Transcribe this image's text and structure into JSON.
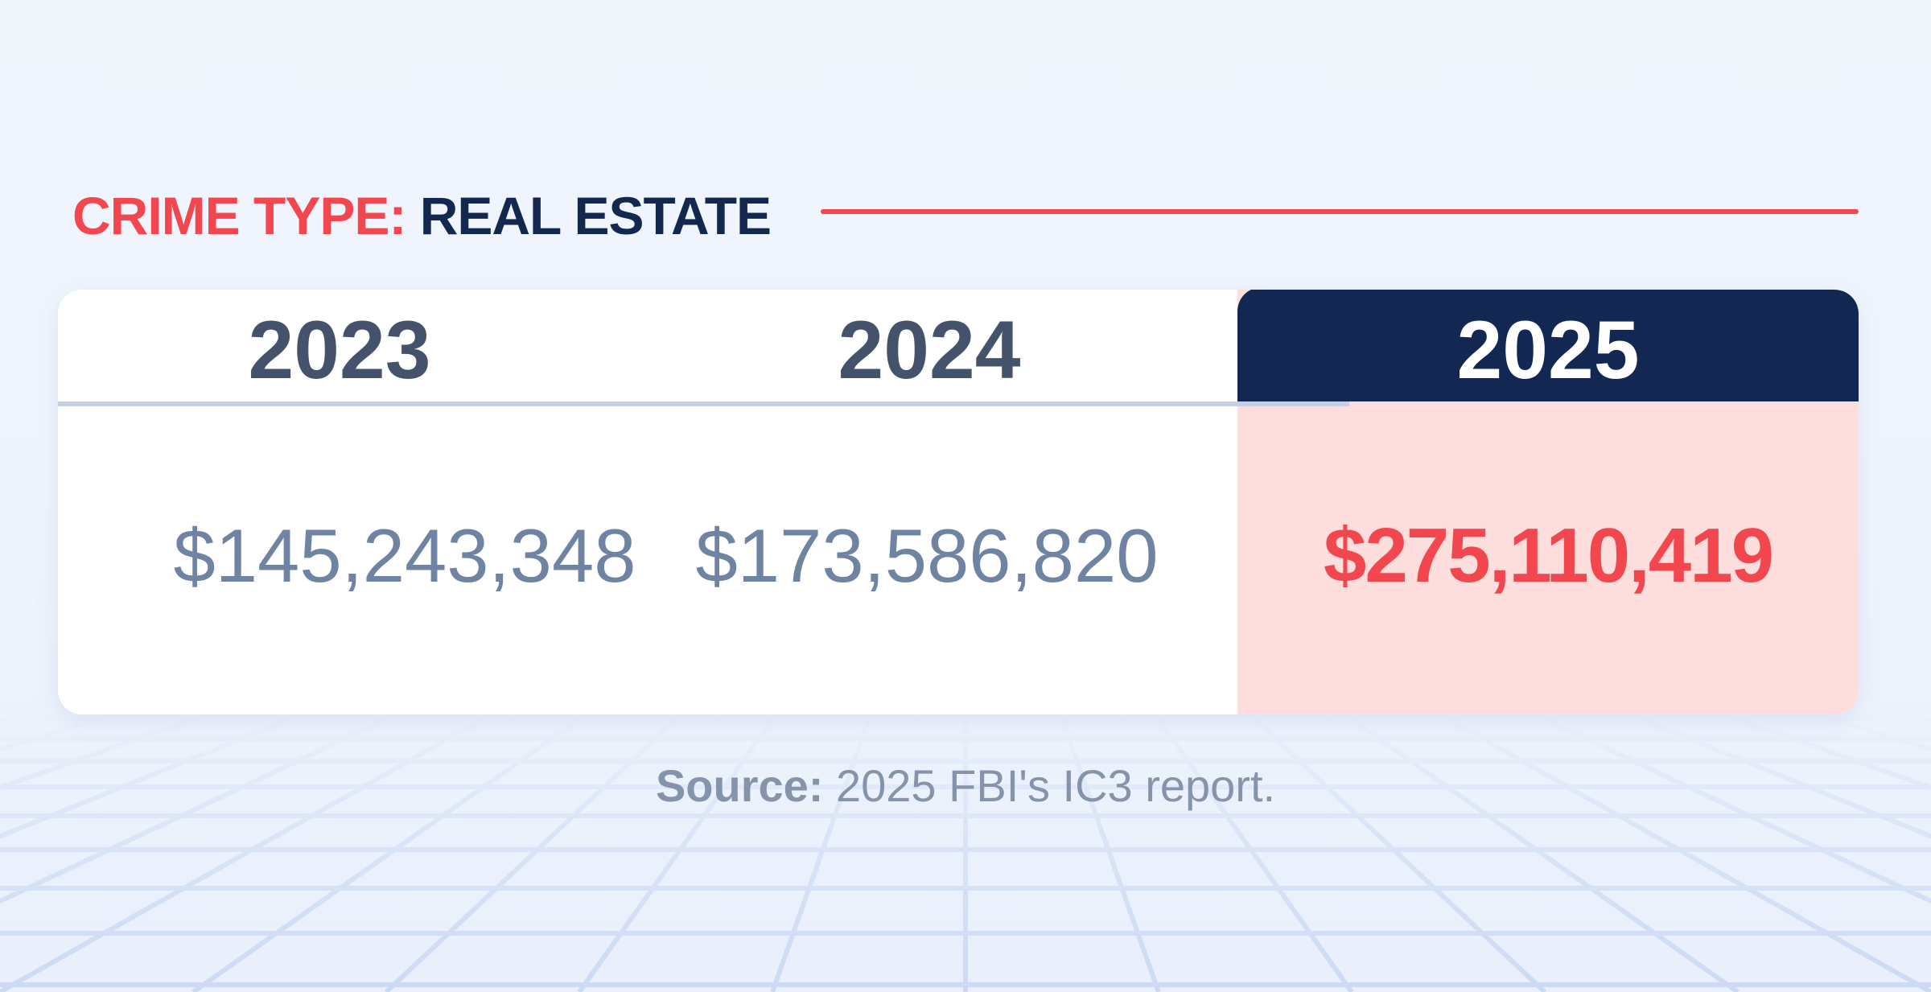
{
  "heading": {
    "label": "CRIME TYPE:",
    "value": "REAL ESTATE"
  },
  "colors": {
    "accent": "#f2474f",
    "navy": "#122751",
    "highlight_background": "#fddedd",
    "muted_value": "#6f84a2"
  },
  "source": {
    "label": "Source:",
    "text": "2025 FBI's IC3 report."
  },
  "chart_data": {
    "type": "table",
    "title": "",
    "columns": [
      "2023",
      "2024",
      "2025"
    ],
    "rows": [
      [
        "$145,243,348",
        "$173,586,820",
        "$275,110,419"
      ]
    ],
    "values": [
      145243348,
      173586820,
      275110419
    ],
    "highlighted_column": "2025"
  }
}
